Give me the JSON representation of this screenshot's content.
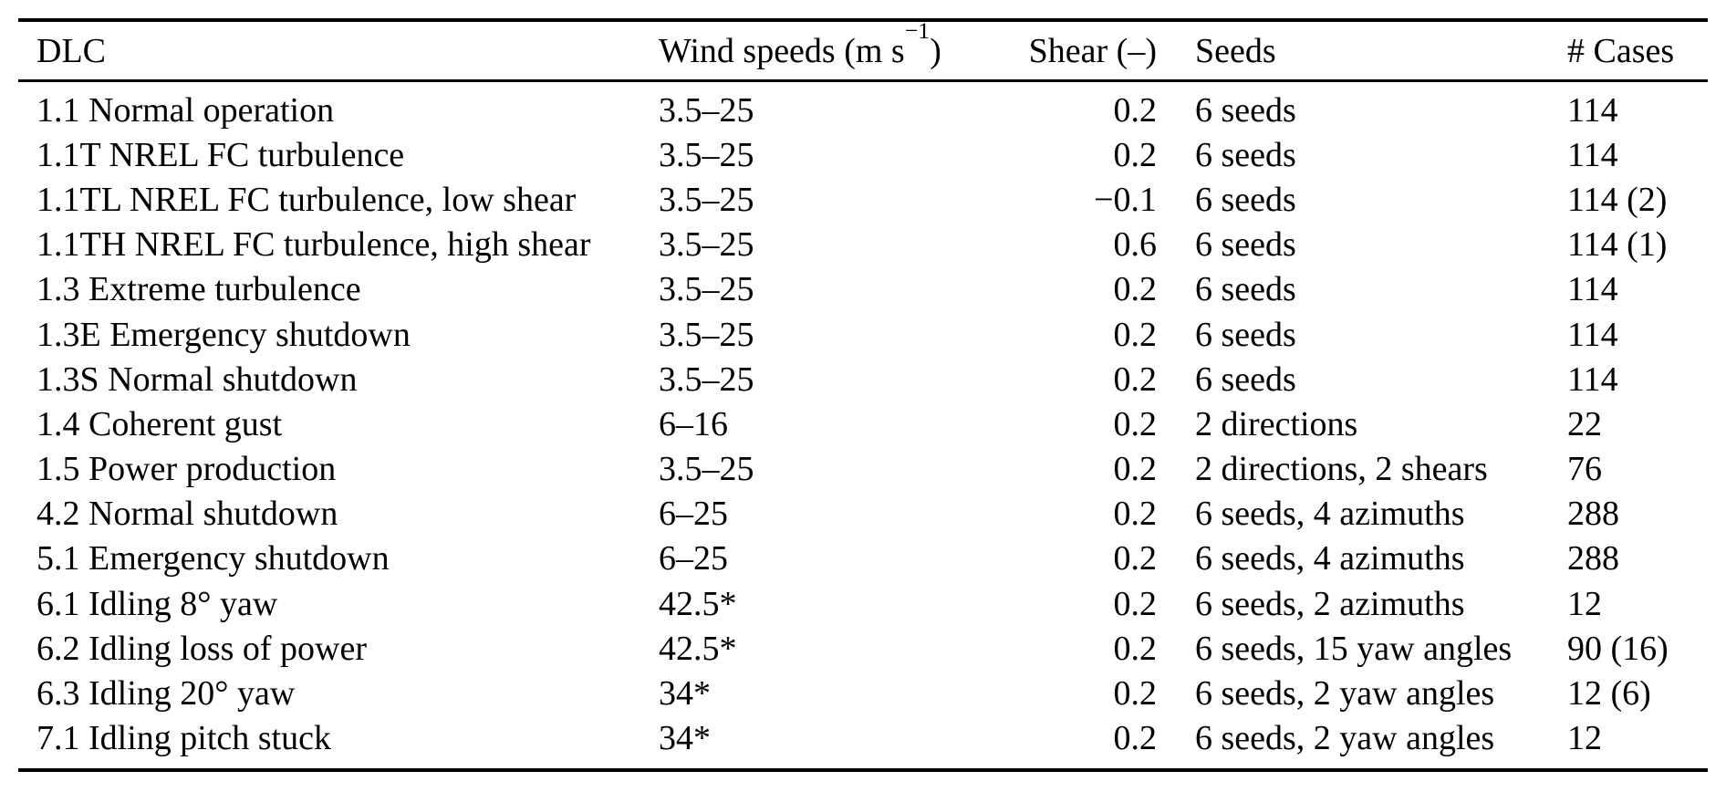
{
  "table": {
    "header": {
      "dlc": "DLC",
      "wind_prefix": "Wind speeds (m s",
      "wind_sup": "−1",
      "wind_suffix": ")",
      "shear": "Shear (–)",
      "seeds": "Seeds",
      "cases": "# Cases"
    },
    "rows": [
      {
        "dlc": "1.1 Normal operation",
        "wind": "3.5–25",
        "shear": "0.2",
        "seeds": "6 seeds",
        "cases": "114"
      },
      {
        "dlc": "1.1T NREL FC turbulence",
        "wind": "3.5–25",
        "shear": "0.2",
        "seeds": "6 seeds",
        "cases": "114"
      },
      {
        "dlc": "1.1TL NREL FC turbulence, low shear",
        "wind": "3.5–25",
        "shear": "−0.1",
        "seeds": "6 seeds",
        "cases": "114 (2)"
      },
      {
        "dlc": "1.1TH NREL FC turbulence, high shear",
        "wind": "3.5–25",
        "shear": "0.6",
        "seeds": "6 seeds",
        "cases": "114 (1)"
      },
      {
        "dlc": "1.3 Extreme turbulence",
        "wind": "3.5–25",
        "shear": "0.2",
        "seeds": "6 seeds",
        "cases": "114"
      },
      {
        "dlc": "1.3E Emergency shutdown",
        "wind": "3.5–25",
        "shear": "0.2",
        "seeds": "6 seeds",
        "cases": "114"
      },
      {
        "dlc": "1.3S Normal shutdown",
        "wind": "3.5–25",
        "shear": "0.2",
        "seeds": "6 seeds",
        "cases": "114"
      },
      {
        "dlc": "1.4 Coherent gust",
        "wind": "6–16",
        "shear": "0.2",
        "seeds": "2 directions",
        "cases": "22"
      },
      {
        "dlc": "1.5 Power production",
        "wind": "3.5–25",
        "shear": "0.2",
        "seeds": "2 directions, 2 shears",
        "cases": "76"
      },
      {
        "dlc": "4.2 Normal shutdown",
        "wind": "6–25",
        "shear": "0.2",
        "seeds": "6 seeds, 4 azimuths",
        "cases": "288"
      },
      {
        "dlc": "5.1 Emergency shutdown",
        "wind": "6–25",
        "shear": "0.2",
        "seeds": "6 seeds, 4 azimuths",
        "cases": "288"
      },
      {
        "dlc": "6.1 Idling 8° yaw",
        "wind": "42.5*",
        "shear": "0.2",
        "seeds": "6 seeds, 2 azimuths",
        "cases": "12"
      },
      {
        "dlc": "6.2 Idling loss of power",
        "wind": "42.5*",
        "shear": "0.2",
        "seeds": "6 seeds, 15 yaw angles",
        "cases": "90 (16)"
      },
      {
        "dlc": "6.3 Idling 20° yaw",
        "wind": "34*",
        "shear": "0.2",
        "seeds": "6 seeds, 2 yaw angles",
        "cases": "12 (6)"
      },
      {
        "dlc": "7.1 Idling pitch stuck",
        "wind": "34*",
        "shear": "0.2",
        "seeds": "6 seeds, 2 yaw angles",
        "cases": "12"
      }
    ],
    "colors": {
      "text": "#000000",
      "rule": "#000000",
      "background": "#ffffff"
    }
  }
}
